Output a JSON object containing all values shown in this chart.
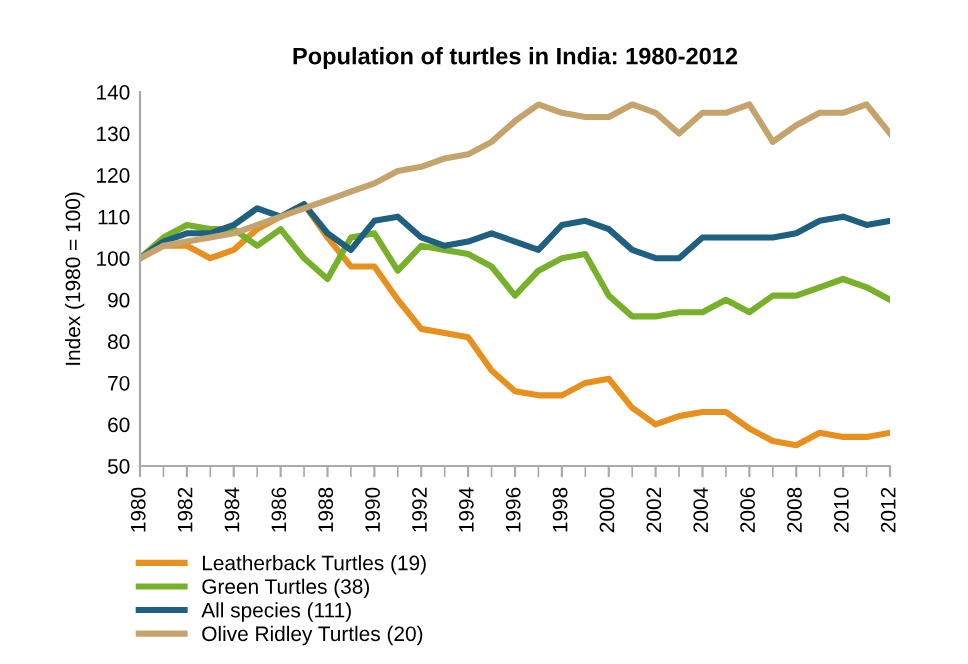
{
  "chart_data": {
    "type": "line",
    "title": "Population of turtles in India: 1980-2012",
    "ylabel": "Index (1980 = 100)",
    "x": [
      1980,
      1981,
      1982,
      1983,
      1984,
      1985,
      1986,
      1987,
      1988,
      1989,
      1990,
      1991,
      1992,
      1993,
      1994,
      1995,
      1996,
      1997,
      1998,
      1999,
      2000,
      2001,
      2002,
      2003,
      2004,
      2005,
      2006,
      2007,
      2008,
      2009,
      2010,
      2011,
      2012
    ],
    "series": [
      {
        "name": "Leatherback Turtles (19)",
        "color": "#e8901e",
        "values": [
          100,
          103,
          103,
          100,
          102,
          107,
          110,
          113,
          105,
          98,
          98,
          90,
          83,
          82,
          81,
          73,
          68,
          67,
          67,
          70,
          71,
          64,
          60,
          62,
          63,
          63,
          59,
          56,
          55,
          58,
          57,
          57,
          58
        ]
      },
      {
        "name": "Green Turtles (38)",
        "color": "#77b02a",
        "values": [
          100,
          105,
          108,
          107,
          107,
          103,
          107,
          100,
          95,
          105,
          106,
          97,
          103,
          102,
          101,
          98,
          91,
          97,
          100,
          101,
          91,
          86,
          86,
          87,
          87,
          90,
          87,
          91,
          91,
          93,
          95,
          93,
          90
        ]
      },
      {
        "name": "All species (111)",
        "color": "#1f5f7f",
        "values": [
          100,
          104,
          106,
          106,
          108,
          112,
          110,
          113,
          106,
          102,
          109,
          110,
          105,
          103,
          104,
          106,
          104,
          102,
          108,
          109,
          107,
          102,
          100,
          100,
          105,
          105,
          105,
          105,
          106,
          109,
          110,
          108,
          109
        ]
      },
      {
        "name": "Olive Ridley Turtles (20)",
        "color": "#c4a46c",
        "values": [
          100,
          103,
          104,
          105,
          106,
          108,
          110,
          112,
          114,
          116,
          118,
          121,
          122,
          124,
          125,
          128,
          133,
          137,
          135,
          134,
          134,
          137,
          135,
          130,
          135,
          135,
          137,
          128,
          132,
          135,
          135,
          137,
          130
        ]
      }
    ],
    "xlim": [
      1980,
      2012
    ],
    "xticks": [
      1980,
      1982,
      1984,
      1986,
      1988,
      1990,
      1992,
      1994,
      1996,
      1998,
      2000,
      2002,
      2004,
      2006,
      2008,
      2010,
      2012
    ],
    "ylim": [
      50,
      140
    ],
    "yticks": [
      50,
      60,
      70,
      80,
      90,
      100,
      110,
      120,
      130,
      140
    ],
    "grid": false,
    "legend": "bottom left",
    "marker": "none",
    "line_style": "solid"
  }
}
